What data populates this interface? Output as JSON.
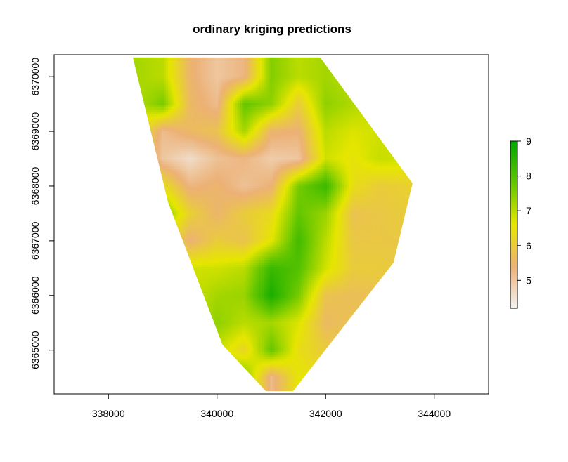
{
  "chart_data": {
    "type": "heatmap",
    "title": "ordinary kriging predictions",
    "xlabel": "",
    "ylabel": "",
    "xlim": [
      337000,
      345000
    ],
    "ylim": [
      6364200,
      6370400
    ],
    "x_ticks": [
      338000,
      340000,
      342000,
      344000
    ],
    "x_tick_labels": [
      "338000",
      "340000",
      "342000",
      "344000"
    ],
    "y_ticks": [
      6365000,
      6366000,
      6367000,
      6368000,
      6369000,
      6370000
    ],
    "y_tick_labels": [
      "6365000",
      "6366000",
      "6367000",
      "6368000",
      "6369000",
      "6370000"
    ],
    "value_range": [
      4.2,
      9
    ],
    "legend": {
      "position": "right",
      "ticks": [
        5,
        6,
        7,
        8,
        9
      ],
      "tick_labels": [
        "5",
        "6",
        "7",
        "8",
        "9"
      ],
      "colormap": [
        "#f2f2f2",
        "#ecb176",
        "#e6e600",
        "#63c600",
        "#00a600"
      ]
    },
    "study_area_boundary": [
      [
        338450,
        6370350
      ],
      [
        341900,
        6370350
      ],
      [
        343600,
        6368050
      ],
      [
        343250,
        6366600
      ],
      [
        341400,
        6364250
      ],
      [
        340900,
        6364250
      ],
      [
        340100,
        6365100
      ],
      [
        339100,
        6367700
      ]
    ],
    "prediction_grid_approx": {
      "x": [
        338500,
        339000,
        339500,
        340000,
        340500,
        341000,
        341500,
        342000,
        342500,
        343000,
        343500
      ],
      "y": [
        6370000,
        6369500,
        6369000,
        6368500,
        6368000,
        6367500,
        6367000,
        6366500,
        6366000,
        6365500,
        6365000,
        6364500
      ],
      "z": [
        [
          7.2,
          7.0,
          5.5,
          5.0,
          5.3,
          7.5,
          7.0,
          7.2,
          7.0,
          6.8,
          6.5
        ],
        [
          7.0,
          7.6,
          5.6,
          5.2,
          7.8,
          7.4,
          6.0,
          7.4,
          7.1,
          6.8,
          6.6
        ],
        [
          6.8,
          5.2,
          5.6,
          5.8,
          7.2,
          5.5,
          5.4,
          7.0,
          6.7,
          6.8,
          6.6
        ],
        [
          6.6,
          5.0,
          4.6,
          5.1,
          5.3,
          4.9,
          5.0,
          6.8,
          6.5,
          6.9,
          6.8
        ],
        [
          6.6,
          6.4,
          5.3,
          5.5,
          5.1,
          5.4,
          7.6,
          8.3,
          6.4,
          6.0,
          6.1
        ],
        [
          6.6,
          7.6,
          6.1,
          5.5,
          6.0,
          6.3,
          7.8,
          7.3,
          5.8,
          5.9,
          6.0
        ],
        [
          6.6,
          6.6,
          5.4,
          6.0,
          5.8,
          6.6,
          8.2,
          7.0,
          5.9,
          5.9,
          5.9
        ],
        [
          6.6,
          6.6,
          6.8,
          6.8,
          7.0,
          8.3,
          8.0,
          6.8,
          6.0,
          6.0,
          5.9
        ],
        [
          6.6,
          6.6,
          6.8,
          7.2,
          7.3,
          8.7,
          7.6,
          5.8,
          5.7,
          5.8,
          5.8
        ],
        [
          6.6,
          6.6,
          6.8,
          7.4,
          7.0,
          7.2,
          6.7,
          5.6,
          5.8,
          5.8,
          5.8
        ],
        [
          6.6,
          6.6,
          6.8,
          6.9,
          6.2,
          7.8,
          6.4,
          6.0,
          5.9,
          5.9,
          5.9
        ],
        [
          6.6,
          6.6,
          6.8,
          7.2,
          7.6,
          5.2,
          6.6,
          6.2,
          6.0,
          6.0,
          6.0
        ]
      ]
    }
  }
}
